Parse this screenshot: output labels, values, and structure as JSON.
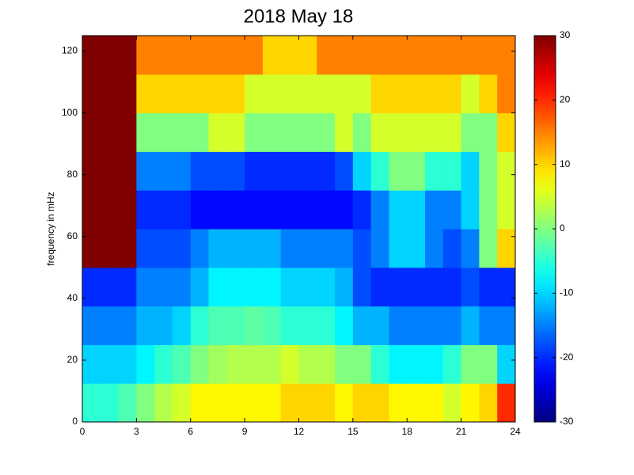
{
  "chart_data": {
    "type": "heatmap",
    "title": "2018 May 18",
    "ylabel": "frequency in mHz",
    "colormap": "jet",
    "x_bins": [
      0,
      1,
      2,
      3,
      4,
      5,
      6,
      7,
      8,
      9,
      10,
      11,
      12,
      13,
      14,
      15,
      16,
      17,
      18,
      19,
      20,
      21,
      22,
      23,
      24
    ],
    "y_bins": [
      0,
      12.5,
      25,
      37.5,
      50,
      62.5,
      75,
      87.5,
      100,
      112.5,
      125
    ],
    "z": [
      [
        -5,
        -5,
        -3,
        0,
        3,
        5,
        8,
        8,
        8,
        8,
        8,
        10,
        10,
        10,
        8,
        10,
        10,
        8,
        8,
        8,
        5,
        8,
        10,
        20
      ],
      [
        -10,
        -10,
        -10,
        -8,
        -5,
        -3,
        0,
        2,
        3,
        3,
        3,
        5,
        3,
        3,
        0,
        0,
        -5,
        -8,
        -8,
        -8,
        -5,
        0,
        0,
        -10
      ],
      [
        -15,
        -15,
        -15,
        -12,
        -12,
        -10,
        -5,
        -3,
        -3,
        -2,
        -3,
        -5,
        -5,
        -5,
        -8,
        -12,
        -12,
        -15,
        -15,
        -15,
        -15,
        -12,
        -15,
        -15
      ],
      [
        -20,
        -20,
        -20,
        -15,
        -15,
        -15,
        -12,
        -8,
        -8,
        -8,
        -8,
        -10,
        -10,
        -10,
        -12,
        -18,
        -20,
        -20,
        -20,
        -20,
        -20,
        -18,
        -20,
        -20
      ],
      [
        30,
        30,
        30,
        -18,
        -18,
        -18,
        -15,
        -12,
        -12,
        -12,
        -12,
        -15,
        -15,
        -15,
        -15,
        -18,
        -15,
        -10,
        -10,
        -15,
        -18,
        -15,
        0,
        10
      ],
      [
        30,
        30,
        30,
        -20,
        -20,
        -20,
        -22,
        -22,
        -22,
        -22,
        -22,
        -22,
        -22,
        -22,
        -22,
        -20,
        -15,
        -10,
        -10,
        -15,
        -15,
        -10,
        0,
        5
      ],
      [
        30,
        30,
        30,
        -15,
        -15,
        -15,
        -18,
        -18,
        -18,
        -20,
        -20,
        -20,
        -20,
        -20,
        -18,
        -10,
        -5,
        0,
        0,
        -5,
        -5,
        -10,
        0,
        5
      ],
      [
        30,
        30,
        30,
        0,
        0,
        0,
        0,
        5,
        5,
        0,
        0,
        0,
        0,
        0,
        5,
        0,
        5,
        5,
        5,
        5,
        5,
        0,
        0,
        10
      ],
      [
        30,
        30,
        30,
        10,
        10,
        10,
        10,
        10,
        10,
        5,
        5,
        5,
        5,
        5,
        5,
        5,
        10,
        10,
        10,
        10,
        10,
        5,
        10,
        15
      ],
      [
        30,
        30,
        30,
        15,
        15,
        15,
        15,
        15,
        15,
        15,
        10,
        10,
        10,
        15,
        15,
        15,
        15,
        15,
        15,
        15,
        15,
        15,
        15,
        15
      ]
    ],
    "xlim": [
      0,
      24
    ],
    "xticks": [
      0,
      3,
      6,
      9,
      12,
      15,
      18,
      21,
      24
    ],
    "ylim": [
      0,
      125
    ],
    "yticks": [
      0,
      20,
      40,
      60,
      80,
      100,
      120
    ],
    "clim": [
      -30,
      30
    ],
    "cticks": [
      -30,
      -20,
      -10,
      0,
      10,
      20,
      30
    ]
  }
}
